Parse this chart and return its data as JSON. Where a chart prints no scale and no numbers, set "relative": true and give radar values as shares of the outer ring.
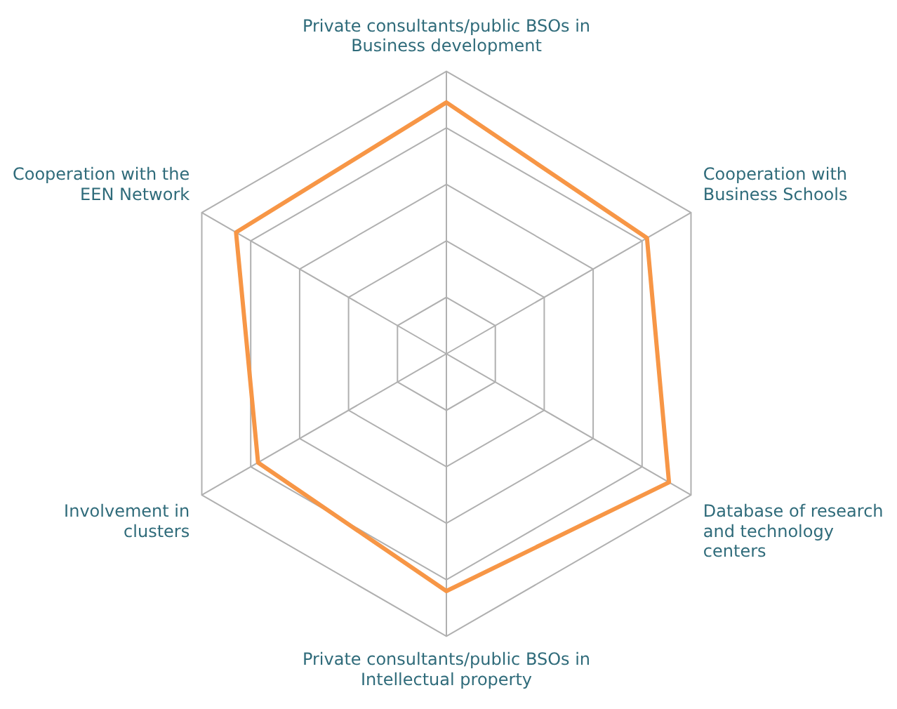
{
  "chart_data": {
    "type": "radar",
    "relative": true,
    "grid": true,
    "legend": false,
    "marker": "none",
    "categories": [
      "Private consultants/public BSOs in Business development",
      "Cooperation with Business Schools",
      "Database of research and technology centers",
      "Private consultants/public BSOs in Intellectual property",
      "Involvement in clusters",
      "Cooperation with the EEN Network"
    ],
    "series": [
      {
        "color": "#f79646",
        "values": [
          0.89,
          0.82,
          0.91,
          0.84,
          0.77,
          0.86
        ]
      }
    ]
  }
}
